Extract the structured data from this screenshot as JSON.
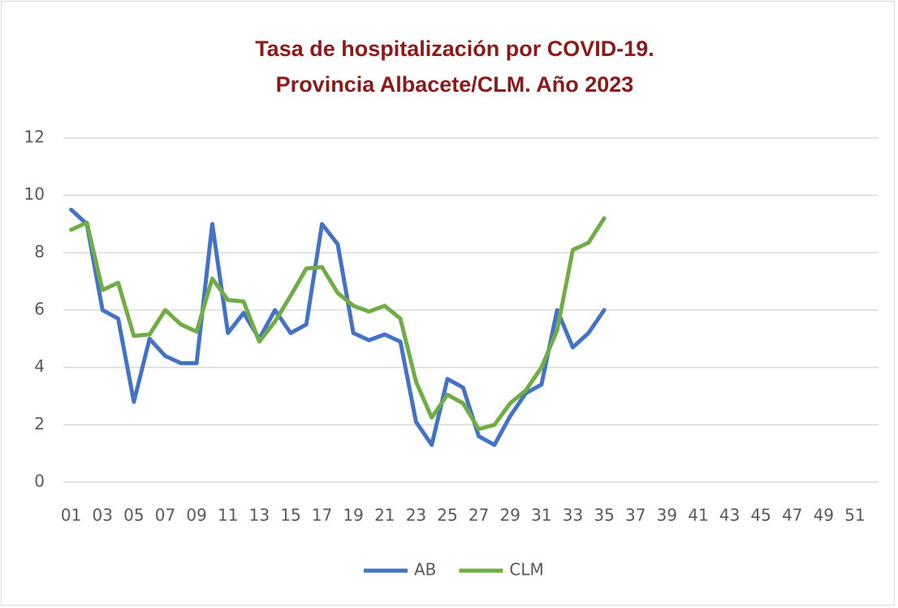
{
  "chart_data": {
    "type": "line",
    "title": [
      "Tasa de hospitalización por COVID-19.",
      "Provincia Albacete/CLM. Año 2023"
    ],
    "categories": [
      "01",
      null,
      "03",
      null,
      "05",
      null,
      "07",
      null,
      "09",
      null,
      "11",
      null,
      "13",
      null,
      "15",
      null,
      "17",
      null,
      "19",
      null,
      "21",
      null,
      "23",
      null,
      "25",
      null,
      "27",
      null,
      "29",
      null,
      "31",
      null,
      "33",
      null,
      "35",
      null,
      "37",
      null,
      "39",
      null,
      "41",
      null,
      "43",
      null,
      "45",
      null,
      "47",
      null,
      "49",
      null,
      "51",
      null
    ],
    "series": [
      {
        "name": "AB",
        "color": "#4472c4",
        "values": [
          9.5,
          9.0,
          6.0,
          5.7,
          2.8,
          5.0,
          4.4,
          4.15,
          4.15,
          9.0,
          5.2,
          5.9,
          5.0,
          6.0,
          5.2,
          5.5,
          9.0,
          8.3,
          5.2,
          4.95,
          5.15,
          4.9,
          2.1,
          1.3,
          3.6,
          3.3,
          1.6,
          1.3,
          2.3,
          3.1,
          3.4,
          6.0,
          4.7,
          5.2,
          6.0,
          null,
          null,
          null,
          null,
          null,
          null,
          null,
          null,
          null,
          null,
          null,
          null,
          null,
          null,
          null,
          null,
          null
        ]
      },
      {
        "name": "CLM",
        "color": "#70ad47",
        "values": [
          8.8,
          9.05,
          6.7,
          6.95,
          5.1,
          5.15,
          6.0,
          5.5,
          5.25,
          7.1,
          6.35,
          6.3,
          4.9,
          5.6,
          6.5,
          7.45,
          7.5,
          6.6,
          6.15,
          5.95,
          6.15,
          5.7,
          3.5,
          2.25,
          3.05,
          2.75,
          1.85,
          2.0,
          2.75,
          3.2,
          4.0,
          5.3,
          8.1,
          8.35,
          9.2,
          null,
          null,
          null,
          null,
          null,
          null,
          null,
          null,
          null,
          null,
          null,
          null,
          null,
          null,
          null,
          null,
          null
        ]
      }
    ],
    "ylim": [
      0,
      12
    ],
    "yticks": [
      0,
      2,
      4,
      6,
      8,
      10,
      12
    ],
    "grid": true,
    "legend": "bottom"
  }
}
